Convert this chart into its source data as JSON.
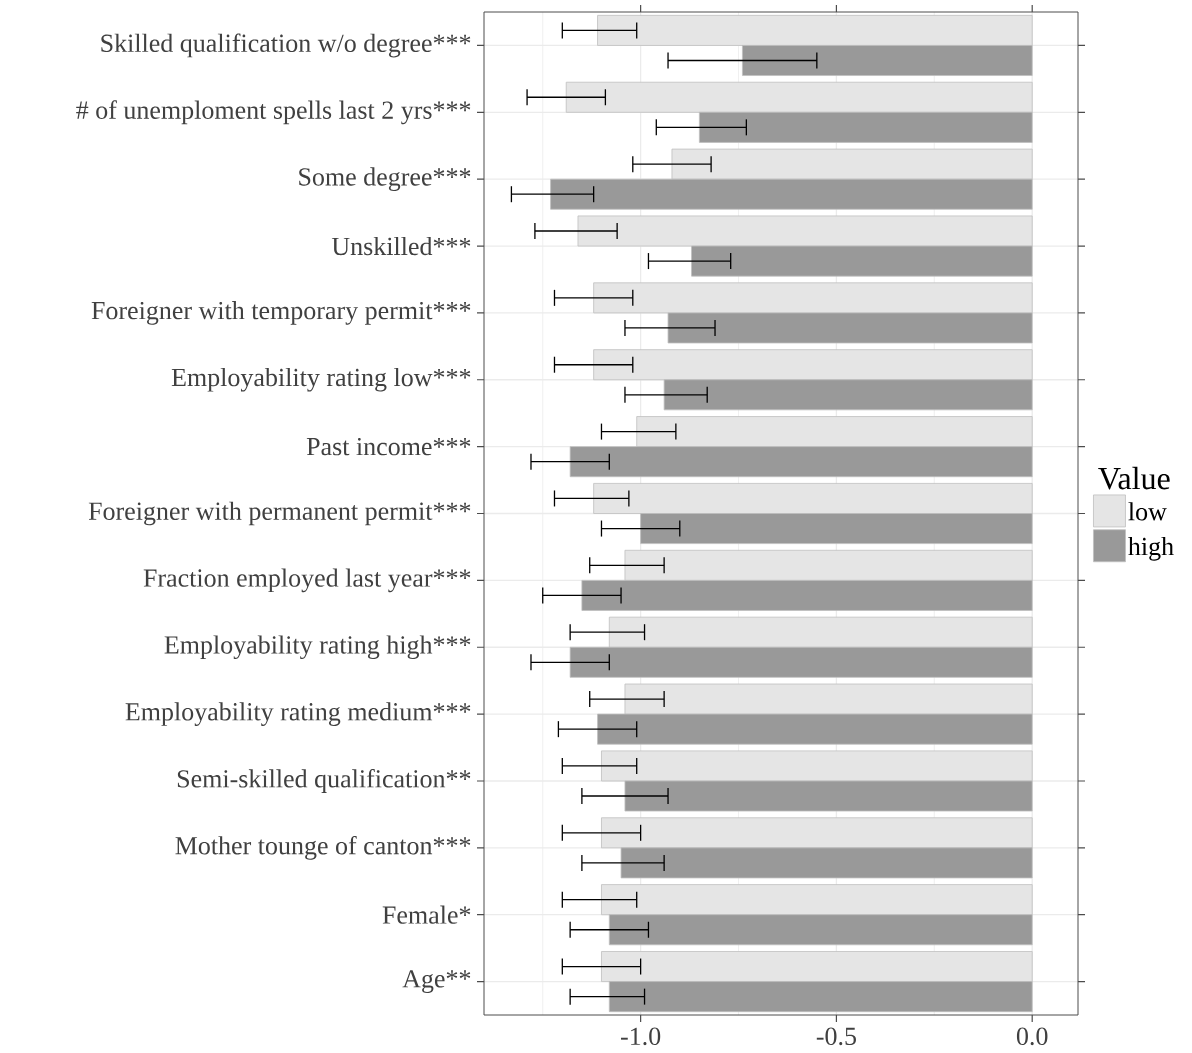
{
  "chart_data": {
    "type": "bar",
    "orientation": "horizontal",
    "legend_title": "Value",
    "legend": "right",
    "grid": true,
    "categories": [
      "Skilled qualification w/o degree***",
      "# of unemploment spells last 2 yrs***",
      "Some degree***",
      "Unskilled***",
      "Foreigner with temporary permit***",
      "Employability rating low***",
      "Past income***",
      "Foreigner with permanent permit***",
      "Fraction employed last year***",
      "Employability rating high***",
      "Employability rating medium***",
      "Semi-skilled qualification**",
      "Mother tounge of canton***",
      "Female*",
      "Age**"
    ],
    "series": [
      {
        "name": "low",
        "color": "#e5e5e5",
        "values": [
          -1.11,
          -1.19,
          -0.92,
          -1.16,
          -1.12,
          -1.12,
          -1.01,
          -1.12,
          -1.04,
          -1.08,
          -1.04,
          -1.1,
          -1.1,
          -1.1,
          -1.1
        ],
        "errors": [
          [
            -1.2,
            -1.01
          ],
          [
            -1.29,
            -1.09
          ],
          [
            -1.02,
            -0.82
          ],
          [
            -1.27,
            -1.06
          ],
          [
            -1.22,
            -1.02
          ],
          [
            -1.22,
            -1.02
          ],
          [
            -1.1,
            -0.91
          ],
          [
            -1.22,
            -1.03
          ],
          [
            -1.13,
            -0.94
          ],
          [
            -1.18,
            -0.99
          ],
          [
            -1.13,
            -0.94
          ],
          [
            -1.2,
            -1.01
          ],
          [
            -1.2,
            -1.0
          ],
          [
            -1.2,
            -1.01
          ],
          [
            -1.2,
            -1.0
          ]
        ]
      },
      {
        "name": "high",
        "color": "#999999",
        "values": [
          -0.74,
          -0.85,
          -1.23,
          -0.87,
          -0.93,
          -0.94,
          -1.18,
          -1.0,
          -1.15,
          -1.18,
          -1.11,
          -1.04,
          -1.05,
          -1.08,
          -1.08
        ],
        "errors": [
          [
            -0.93,
            -0.55
          ],
          [
            -0.96,
            -0.73
          ],
          [
            -1.33,
            -1.12
          ],
          [
            -0.98,
            -0.77
          ],
          [
            -1.04,
            -0.81
          ],
          [
            -1.04,
            -0.83
          ],
          [
            -1.28,
            -1.08
          ],
          [
            -1.1,
            -0.9
          ],
          [
            -1.25,
            -1.05
          ],
          [
            -1.28,
            -1.08
          ],
          [
            -1.21,
            -1.01
          ],
          [
            -1.15,
            -0.93
          ],
          [
            -1.15,
            -0.94
          ],
          [
            -1.18,
            -0.98
          ],
          [
            -1.18,
            -0.99
          ]
        ]
      }
    ],
    "xlim": [
      -1.4,
      0.117
    ],
    "xticks": [
      {
        "value": -1.25,
        "label": null
      },
      {
        "value": -1.0,
        "label": "-1.0"
      },
      {
        "value": -0.75,
        "label": null
      },
      {
        "value": -0.5,
        "label": "-0.5"
      },
      {
        "value": -0.25,
        "label": null
      },
      {
        "value": 0.0,
        "label": "0.0"
      }
    ]
  }
}
